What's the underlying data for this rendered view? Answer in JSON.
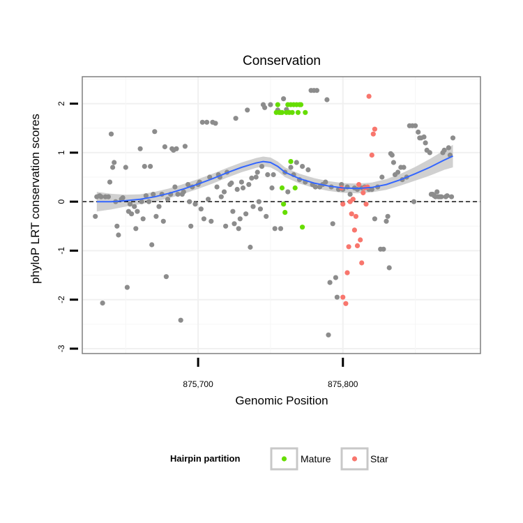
{
  "chart_data": {
    "type": "scatter",
    "title": "Conservation",
    "xlabel": "Genomic Position",
    "ylabel": "phyloP LRT conservation scores",
    "xlim": [
      875620,
      875895
    ],
    "ylim": [
      -3.1,
      2.55
    ],
    "x_ticks": [
      {
        "value": 875700,
        "label": "875,700"
      },
      {
        "value": 875800,
        "label": "875,800"
      }
    ],
    "y_ticks": [
      {
        "value": -3,
        "label": "-3"
      },
      {
        "value": -2,
        "label": "-2"
      },
      {
        "value": -1,
        "label": "-1"
      },
      {
        "value": 0,
        "label": "0"
      },
      {
        "value": 1,
        "label": "1"
      },
      {
        "value": 2,
        "label": "2"
      }
    ],
    "reference_line": {
      "y": 0,
      "style": "dashed"
    },
    "legend": {
      "title": "Hairpin partition",
      "entries": [
        {
          "label": "Mature",
          "color": "#66dd00"
        },
        {
          "label": "Star",
          "color": "#f8766d"
        }
      ]
    },
    "colors": {
      "other": "#8c8c8c",
      "mature": "#66dd00",
      "star": "#f8766d",
      "smooth": "#3366ff",
      "band": "#c8c8c8"
    },
    "smooth": {
      "x": [
        875630,
        875640,
        875650,
        875660,
        875670,
        875680,
        875690,
        875700,
        875710,
        875720,
        875730,
        875740,
        875745,
        875750,
        875755,
        875760,
        875770,
        875780,
        875790,
        875800,
        875810,
        875820,
        875830,
        875840,
        875850,
        875860,
        875870,
        875876
      ],
      "y": [
        0.0,
        0.0,
        0.02,
        0.05,
        0.1,
        0.17,
        0.26,
        0.36,
        0.47,
        0.59,
        0.7,
        0.79,
        0.82,
        0.8,
        0.72,
        0.6,
        0.47,
        0.38,
        0.32,
        0.28,
        0.27,
        0.29,
        0.35,
        0.45,
        0.57,
        0.7,
        0.85,
        0.93
      ],
      "lower": [
        -0.2,
        -0.16,
        -0.1,
        -0.05,
        0.0,
        0.07,
        0.16,
        0.26,
        0.37,
        0.49,
        0.6,
        0.69,
        0.72,
        0.7,
        0.62,
        0.5,
        0.37,
        0.28,
        0.22,
        0.18,
        0.17,
        0.19,
        0.24,
        0.33,
        0.43,
        0.53,
        0.65,
        0.7
      ],
      "upper": [
        0.2,
        0.16,
        0.14,
        0.15,
        0.2,
        0.27,
        0.36,
        0.46,
        0.57,
        0.69,
        0.8,
        0.89,
        0.92,
        0.9,
        0.82,
        0.7,
        0.57,
        0.48,
        0.42,
        0.38,
        0.37,
        0.39,
        0.46,
        0.57,
        0.71,
        0.87,
        1.05,
        1.16
      ]
    },
    "series": [
      {
        "name": "Other",
        "color": "#8c8c8c",
        "points": [
          [
            875629,
            -0.3
          ],
          [
            875630,
            0.1
          ],
          [
            875632,
            0.12
          ],
          [
            875633,
            0.1
          ],
          [
            875634,
            -2.07
          ],
          [
            875636,
            0.1
          ],
          [
            875638,
            0.1
          ],
          [
            875639,
            0.4
          ],
          [
            875640,
            1.38
          ],
          [
            875641,
            0.7
          ],
          [
            875642,
            0.8
          ],
          [
            875643,
            0.0
          ],
          [
            875644,
            -0.5
          ],
          [
            875645,
            -0.68
          ],
          [
            875647,
            0.05
          ],
          [
            875648,
            0.08
          ],
          [
            875650,
            0.7
          ],
          [
            875651,
            -1.75
          ],
          [
            875652,
            -0.2
          ],
          [
            875653,
            -0.05
          ],
          [
            875654,
            -0.25
          ],
          [
            875656,
            -0.1
          ],
          [
            875657,
            -0.55
          ],
          [
            875658,
            -0.2
          ],
          [
            875660,
            1.08
          ],
          [
            875661,
            0.0
          ],
          [
            875662,
            -0.35
          ],
          [
            875663,
            0.72
          ],
          [
            875664,
            0.12
          ],
          [
            875666,
            0.0
          ],
          [
            875667,
            0.72
          ],
          [
            875668,
            -0.88
          ],
          [
            875669,
            0.15
          ],
          [
            875670,
            1.43
          ],
          [
            875671,
            -0.3
          ],
          [
            875673,
            -0.1
          ],
          [
            875675,
            0.15
          ],
          [
            875676,
            -0.4
          ],
          [
            875677,
            1.12
          ],
          [
            875678,
            -1.53
          ],
          [
            875679,
            0.05
          ],
          [
            875681,
            0.15
          ],
          [
            875682,
            1.08
          ],
          [
            875683,
            1.05
          ],
          [
            875684,
            0.3
          ],
          [
            875685,
            1.08
          ],
          [
            875686,
            0.15
          ],
          [
            875688,
            -2.42
          ],
          [
            875689,
            0.15
          ],
          [
            875690,
            0.2
          ],
          [
            875691,
            1.13
          ],
          [
            875693,
            0.35
          ],
          [
            875694,
            0.0
          ],
          [
            875695,
            -0.5
          ],
          [
            875696,
            0.3
          ],
          [
            875698,
            -0.05
          ],
          [
            875700,
            0.35
          ],
          [
            875701,
            0.4
          ],
          [
            875702,
            -0.15
          ],
          [
            875703,
            1.62
          ],
          [
            875704,
            -0.35
          ],
          [
            875706,
            1.62
          ],
          [
            875707,
            0.05
          ],
          [
            875708,
            0.5
          ],
          [
            875709,
            -0.4
          ],
          [
            875710,
            1.62
          ],
          [
            875712,
            1.6
          ],
          [
            875713,
            0.3
          ],
          [
            875714,
            0.55
          ],
          [
            875715,
            0.5
          ],
          [
            875716,
            0.1
          ],
          [
            875718,
            0.2
          ],
          [
            875719,
            -0.5
          ],
          [
            875720,
            0.6
          ],
          [
            875722,
            0.35
          ],
          [
            875723,
            0.38
          ],
          [
            875724,
            -0.2
          ],
          [
            875725,
            -0.45
          ],
          [
            875726,
            1.7
          ],
          [
            875727,
            0.25
          ],
          [
            875728,
            -0.55
          ],
          [
            875729,
            -0.35
          ],
          [
            875730,
            0.4
          ],
          [
            875731,
            0.28
          ],
          [
            875733,
            -0.25
          ],
          [
            875734,
            1.87
          ],
          [
            875735,
            0.35
          ],
          [
            875736,
            -0.93
          ],
          [
            875737,
            0.48
          ],
          [
            875738,
            -0.1
          ],
          [
            875740,
            0.5
          ],
          [
            875741,
            0.6
          ],
          [
            875742,
            0.0
          ],
          [
            875743,
            -0.15
          ],
          [
            875744,
            0.72
          ],
          [
            875745,
            1.98
          ],
          [
            875746,
            1.92
          ],
          [
            875747,
            -0.3
          ],
          [
            875748,
            0.55
          ],
          [
            875750,
            1.98
          ],
          [
            875751,
            0.28
          ],
          [
            875752,
            0.55
          ],
          [
            875753,
            -0.55
          ],
          [
            875755,
            1.87
          ],
          [
            875757,
            -0.55
          ],
          [
            875759,
            2.1
          ],
          [
            875760,
            0.6
          ],
          [
            875761,
            1.88
          ],
          [
            875762,
            0.2
          ],
          [
            875764,
            0.7
          ],
          [
            875766,
            0.55
          ],
          [
            875768,
            0.8
          ],
          [
            875770,
            0.45
          ],
          [
            875772,
            0.72
          ],
          [
            875774,
            0.4
          ],
          [
            875776,
            0.65
          ],
          [
            875778,
            2.27
          ],
          [
            875779,
            0.35
          ],
          [
            875780,
            2.27
          ],
          [
            875781,
            0.3
          ],
          [
            875782,
            2.27
          ],
          [
            875784,
            0.3
          ],
          [
            875786,
            0.35
          ],
          [
            875788,
            0.4
          ],
          [
            875789,
            2.08
          ],
          [
            875790,
            -2.72
          ],
          [
            875791,
            -1.65
          ],
          [
            875792,
            0.3
          ],
          [
            875793,
            -0.45
          ],
          [
            875795,
            -1.55
          ],
          [
            875796,
            -1.95
          ],
          [
            875797,
            0.25
          ],
          [
            875799,
            0.35
          ],
          [
            875800,
            0.25
          ],
          [
            875803,
            0.3
          ],
          [
            875805,
            0.15
          ],
          [
            875808,
            0.28
          ],
          [
            875810,
            0.25
          ],
          [
            875813,
            0.28
          ],
          [
            875815,
            0.3
          ],
          [
            875818,
            0.25
          ],
          [
            875820,
            0.25
          ],
          [
            875822,
            -0.35
          ],
          [
            875824,
            0.3
          ],
          [
            875826,
            -0.97
          ],
          [
            875827,
            0.5
          ],
          [
            875828,
            -0.97
          ],
          [
            875830,
            -0.4
          ],
          [
            875831,
            -0.3
          ],
          [
            875832,
            -1.35
          ],
          [
            875833,
            0.98
          ],
          [
            875834,
            0.95
          ],
          [
            875835,
            0.8
          ],
          [
            875836,
            0.55
          ],
          [
            875838,
            0.6
          ],
          [
            875840,
            0.7
          ],
          [
            875841,
            0.45
          ],
          [
            875842,
            0.7
          ],
          [
            875844,
            0.5
          ],
          [
            875846,
            1.55
          ],
          [
            875848,
            1.55
          ],
          [
            875849,
            0.0
          ],
          [
            875850,
            1.55
          ],
          [
            875852,
            1.42
          ],
          [
            875853,
            1.3
          ],
          [
            875854,
            1.3
          ],
          [
            875856,
            1.32
          ],
          [
            875857,
            1.2
          ],
          [
            875858,
            1.05
          ],
          [
            875860,
            1.0
          ],
          [
            875861,
            0.15
          ],
          [
            875862,
            0.15
          ],
          [
            875863,
            0.12
          ],
          [
            875864,
            0.1
          ],
          [
            875865,
            0.2
          ],
          [
            875866,
            0.1
          ],
          [
            875867,
            0.1
          ],
          [
            875868,
            0.1
          ],
          [
            875869,
            1.0
          ],
          [
            875870,
            1.05
          ],
          [
            875871,
            0.1
          ],
          [
            875872,
            0.12
          ],
          [
            875873,
            1.1
          ],
          [
            875874,
            0.95
          ],
          [
            875875,
            0.1
          ],
          [
            875876,
            1.3
          ]
        ]
      },
      {
        "name": "Mature",
        "color": "#66dd00",
        "points": [
          [
            875754,
            1.82
          ],
          [
            875755,
            1.98
          ],
          [
            875756,
            1.82
          ],
          [
            875757,
            1.82
          ],
          [
            875758,
            1.82
          ],
          [
            875758,
            0.28
          ],
          [
            875759,
            -0.05
          ],
          [
            875760,
            -0.22
          ],
          [
            875761,
            1.82
          ],
          [
            875762,
            1.98
          ],
          [
            875763,
            1.82
          ],
          [
            875764,
            0.82
          ],
          [
            875764,
            1.98
          ],
          [
            875765,
            1.82
          ],
          [
            875766,
            1.98
          ],
          [
            875767,
            0.28
          ],
          [
            875768,
            1.98
          ],
          [
            875769,
            1.82
          ],
          [
            875770,
            1.98
          ],
          [
            875771,
            1.98
          ],
          [
            875772,
            -0.52
          ],
          [
            875774,
            1.82
          ]
        ]
      },
      {
        "name": "Star",
        "color": "#f8766d",
        "points": [
          [
            875799,
            0.28
          ],
          [
            875800,
            -1.95
          ],
          [
            875800,
            -0.05
          ],
          [
            875802,
            -2.08
          ],
          [
            875803,
            -1.45
          ],
          [
            875804,
            -0.92
          ],
          [
            875805,
            0.0
          ],
          [
            875806,
            -0.25
          ],
          [
            875807,
            0.05
          ],
          [
            875808,
            -0.58
          ],
          [
            875809,
            -0.3
          ],
          [
            875810,
            -0.9
          ],
          [
            875811,
            0.35
          ],
          [
            875812,
            -0.78
          ],
          [
            875813,
            -1.25
          ],
          [
            875814,
            0.18
          ],
          [
            875815,
            0.28
          ],
          [
            875816,
            -0.05
          ],
          [
            875817,
            0.3
          ],
          [
            875818,
            2.15
          ],
          [
            875820,
            0.95
          ],
          [
            875821,
            1.38
          ],
          [
            875822,
            1.48
          ]
        ]
      }
    ]
  }
}
